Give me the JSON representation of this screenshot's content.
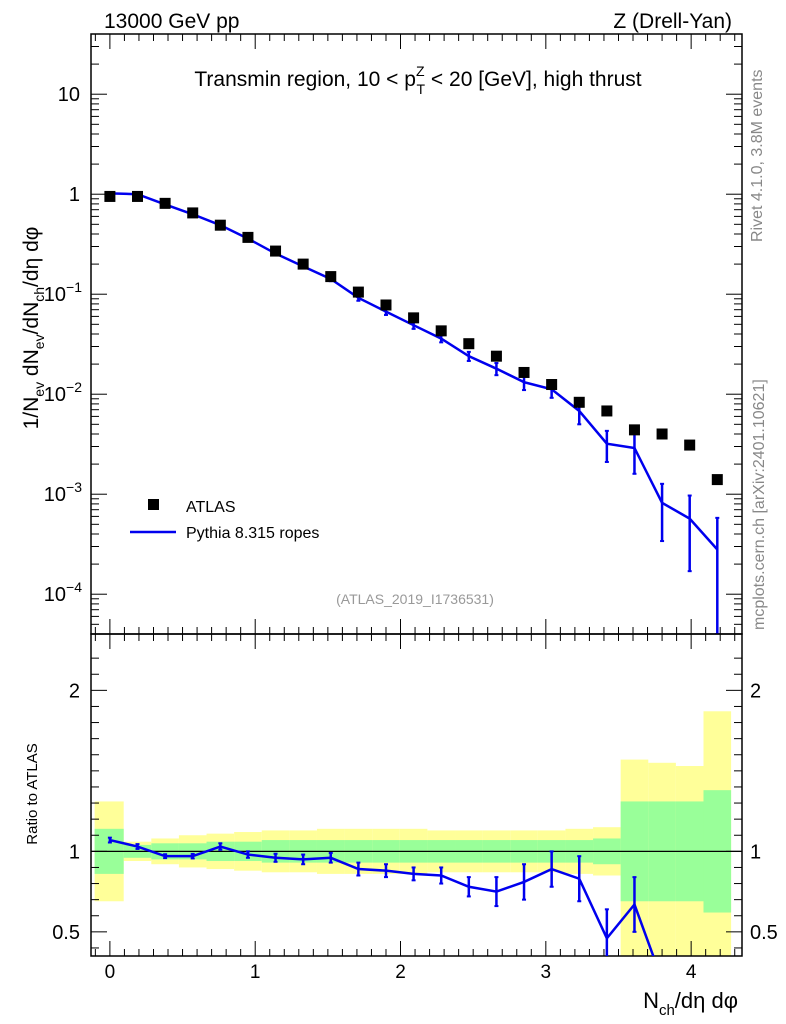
{
  "header": {
    "left": "13000 GeV pp",
    "right": "Z (Drell-Yan)"
  },
  "side_labels": {
    "rivet": "Rivet 4.1.0,  3.8M events",
    "mcplots": "mcplots.cern.ch [arXiv:2401.10621]"
  },
  "chart_data": [
    {
      "type": "line",
      "panel": "main",
      "title": "Transmin region, 10 < p_T^Z < 20 [GeV], high thrust",
      "title_parts": {
        "pre": "Transmin region, 10 < p",
        "sup": "Z",
        "sub": "T",
        "post": " < 20 [GeV], high thrust"
      },
      "ylabel": "1/N_ev dN_ev/dN_ch/dη dφ",
      "ylabel_parts": [
        "1/N",
        "ev",
        " dN",
        "ev",
        "/dN",
        "ch",
        "/dη dφ"
      ],
      "yscale": "log",
      "ylim": [
        4e-05,
        40
      ],
      "xlim": [
        -0.13,
        4.35
      ],
      "ytick_labels": [
        {
          "v": 10,
          "base": "10",
          "exp": ""
        },
        {
          "v": 1,
          "base": "1",
          "exp": ""
        },
        {
          "v": 0.1,
          "base": "10",
          "exp": "−1"
        },
        {
          "v": 0.01,
          "base": "10",
          "exp": "−2"
        },
        {
          "v": 0.001,
          "base": "10",
          "exp": "−3"
        },
        {
          "v": 0.0001,
          "base": "10",
          "exp": "−4"
        }
      ],
      "watermark": "(ATLAS_2019_I1736531)",
      "legend": {
        "position": "bottom-left",
        "entries": [
          "ATLAS",
          "Pythia 8.315 ropes"
        ]
      },
      "series": [
        {
          "name": "ATLAS",
          "marker": "square",
          "color": "#000000",
          "x": [
            0.0,
            0.19,
            0.38,
            0.57,
            0.76,
            0.95,
            1.14,
            1.33,
            1.52,
            1.71,
            1.9,
            2.09,
            2.28,
            2.47,
            2.66,
            2.85,
            3.04,
            3.23,
            3.42,
            3.61,
            3.8,
            3.99,
            4.18
          ],
          "y": [
            0.95,
            0.95,
            0.81,
            0.65,
            0.49,
            0.37,
            0.27,
            0.2,
            0.15,
            0.105,
            0.078,
            0.058,
            0.043,
            0.032,
            0.024,
            0.0165,
            0.0125,
            0.0083,
            0.0068,
            0.0044,
            0.004,
            0.0031,
            0.0014
          ]
        },
        {
          "name": "Pythia 8.315 ropes",
          "marker": "line",
          "color": "#0000ee",
          "x": [
            0.0,
            0.19,
            0.38,
            0.57,
            0.76,
            0.95,
            1.14,
            1.33,
            1.52,
            1.71,
            1.9,
            2.09,
            2.28,
            2.47,
            2.66,
            2.85,
            3.04,
            3.23,
            3.42,
            3.61,
            3.8,
            3.99,
            4.18
          ],
          "y": [
            1.02,
            1.0,
            0.79,
            0.63,
            0.49,
            0.36,
            0.255,
            0.19,
            0.142,
            0.092,
            0.067,
            0.049,
            0.036,
            0.024,
            0.018,
            0.0132,
            0.0112,
            0.0068,
            0.0032,
            0.0029,
            0.00082,
            0.00057,
            0.00028
          ],
          "err_lo": [
            0.02,
            0.02,
            0.02,
            0.02,
            0.02,
            0.015,
            0.01,
            0.008,
            0.007,
            0.006,
            0.005,
            0.004,
            0.003,
            0.0025,
            0.0025,
            0.0022,
            0.002,
            0.0018,
            0.0011,
            0.0013,
            0.00048,
            0.0004,
            0.00026
          ],
          "err_hi": [
            0.02,
            0.02,
            0.02,
            0.02,
            0.02,
            0.015,
            0.01,
            0.008,
            0.007,
            0.006,
            0.005,
            0.004,
            0.003,
            0.0025,
            0.0025,
            0.0022,
            0.002,
            0.0018,
            0.0011,
            0.0013,
            0.00045,
            0.0004,
            0.0003
          ]
        }
      ]
    },
    {
      "type": "line",
      "panel": "ratio",
      "ylabel": "Ratio to ATLAS",
      "xlabel": "N_ch/dη dφ",
      "xlabel_parts": [
        "N",
        "ch",
        "/dη dφ"
      ],
      "ylim": [
        0.35,
        2.35
      ],
      "xlim": [
        -0.13,
        4.35
      ],
      "ytick_labels": [
        {
          "v": 0.5,
          "label": "0.5"
        },
        {
          "v": 1,
          "label": "1"
        },
        {
          "v": 2,
          "label": "2"
        }
      ],
      "xtick_labels": [
        {
          "v": 0,
          "label": "0"
        },
        {
          "v": 1,
          "label": "1"
        },
        {
          "v": 2,
          "label": "2"
        },
        {
          "v": 3,
          "label": "3"
        },
        {
          "v": 4,
          "label": "4"
        }
      ],
      "bands": {
        "bin_edges": [
          -0.105,
          0.095,
          0.285,
          0.475,
          0.665,
          0.855,
          1.045,
          1.235,
          1.425,
          1.615,
          1.805,
          1.995,
          2.185,
          2.375,
          2.565,
          2.755,
          2.945,
          3.135,
          3.325,
          3.515,
          3.705,
          3.895,
          4.085,
          4.275
        ],
        "inner": {
          "color": "#99ff99",
          "lo": [
            0.86,
            0.96,
            0.95,
            0.95,
            0.94,
            0.94,
            0.93,
            0.93,
            0.93,
            0.93,
            0.93,
            0.93,
            0.93,
            0.93,
            0.93,
            0.93,
            0.93,
            0.93,
            0.92,
            0.69,
            0.69,
            0.69,
            0.62
          ],
          "hi": [
            1.14,
            1.04,
            1.05,
            1.05,
            1.06,
            1.06,
            1.07,
            1.07,
            1.07,
            1.07,
            1.07,
            1.07,
            1.07,
            1.07,
            1.07,
            1.07,
            1.07,
            1.07,
            1.08,
            1.31,
            1.31,
            1.31,
            1.38
          ]
        },
        "outer": {
          "color": "#ffff99",
          "lo": [
            0.69,
            0.94,
            0.92,
            0.9,
            0.89,
            0.88,
            0.87,
            0.87,
            0.86,
            0.86,
            0.86,
            0.86,
            0.87,
            0.87,
            0.87,
            0.87,
            0.87,
            0.86,
            0.85,
            0.35,
            0.35,
            0.35,
            0.35
          ],
          "hi": [
            1.31,
            1.06,
            1.08,
            1.1,
            1.11,
            1.12,
            1.13,
            1.13,
            1.14,
            1.14,
            1.14,
            1.14,
            1.13,
            1.13,
            1.13,
            1.13,
            1.13,
            1.14,
            1.15,
            1.57,
            1.55,
            1.53,
            1.87
          ]
        }
      },
      "series": [
        {
          "name": "Pythia 8.315 ropes / ATLAS",
          "color": "#0000ee",
          "x": [
            0.0,
            0.19,
            0.38,
            0.57,
            0.76,
            0.95,
            1.14,
            1.33,
            1.52,
            1.71,
            1.9,
            2.09,
            2.28,
            2.47,
            2.66,
            2.85,
            3.04,
            3.23,
            3.42,
            3.61,
            3.8
          ],
          "y": [
            1.07,
            1.03,
            0.97,
            0.97,
            1.03,
            0.98,
            0.96,
            0.95,
            0.96,
            0.89,
            0.88,
            0.86,
            0.85,
            0.78,
            0.75,
            0.81,
            0.89,
            0.83,
            0.46,
            0.67,
            0.2
          ],
          "err": [
            0.015,
            0.015,
            0.012,
            0.014,
            0.02,
            0.02,
            0.025,
            0.03,
            0.03,
            0.04,
            0.04,
            0.04,
            0.05,
            0.06,
            0.09,
            0.11,
            0.11,
            0.14,
            0.18,
            0.17,
            0.0
          ]
        }
      ]
    }
  ]
}
